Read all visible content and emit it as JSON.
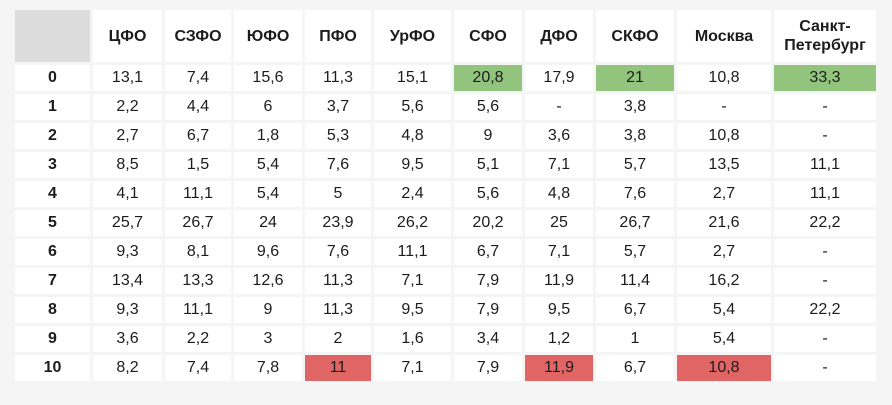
{
  "table": {
    "corner": "",
    "columns": [
      "ЦФО",
      "СЗФО",
      "ЮФО",
      "ПФО",
      "УрФО",
      "СФО",
      "ДФО",
      "СКФО",
      "Москва",
      "Санкт-Петербург"
    ],
    "rows": [
      {
        "label": "0",
        "cells": [
          "13,1",
          "7,4",
          "15,6",
          "11,3",
          "15,1",
          "20,8",
          "17,9",
          "21",
          "10,8",
          "33,3"
        ]
      },
      {
        "label": "1",
        "cells": [
          "2,2",
          "4,4",
          "6",
          "3,7",
          "5,6",
          "5,6",
          "-",
          "3,8",
          "-",
          "-"
        ]
      },
      {
        "label": "2",
        "cells": [
          "2,7",
          "6,7",
          "1,8",
          "5,3",
          "4,8",
          "9",
          "3,6",
          "3,8",
          "10,8",
          "-"
        ]
      },
      {
        "label": "3",
        "cells": [
          "8,5",
          "1,5",
          "5,4",
          "7,6",
          "9,5",
          "5,1",
          "7,1",
          "5,7",
          "13,5",
          "11,1"
        ]
      },
      {
        "label": "4",
        "cells": [
          "4,1",
          "11,1",
          "5,4",
          "5",
          "2,4",
          "5,6",
          "4,8",
          "7,6",
          "2,7",
          "11,1"
        ]
      },
      {
        "label": "5",
        "cells": [
          "25,7",
          "26,7",
          "24",
          "23,9",
          "26,2",
          "20,2",
          "25",
          "26,7",
          "21,6",
          "22,2"
        ]
      },
      {
        "label": "6",
        "cells": [
          "9,3",
          "8,1",
          "9,6",
          "7,6",
          "11,1",
          "6,7",
          "7,1",
          "5,7",
          "2,7",
          "-"
        ]
      },
      {
        "label": "7",
        "cells": [
          "13,4",
          "13,3",
          "12,6",
          "11,3",
          "7,1",
          "7,9",
          "11,9",
          "11,4",
          "16,2",
          "-"
        ]
      },
      {
        "label": "8",
        "cells": [
          "9,3",
          "11,1",
          "9",
          "11,3",
          "9,5",
          "7,9",
          "9,5",
          "6,7",
          "5,4",
          "22,2"
        ]
      },
      {
        "label": "9",
        "cells": [
          "3,6",
          "2,2",
          "3",
          "2",
          "1,6",
          "3,4",
          "1,2",
          "1",
          "5,4",
          "-"
        ]
      },
      {
        "label": "10",
        "cells": [
          "8,2",
          "7,4",
          "7,8",
          "11",
          "7,1",
          "7,9",
          "11,9",
          "6,7",
          "10,8",
          "-"
        ]
      }
    ],
    "highlights": {
      "high_color": "#93c47d",
      "low_color": "#e06666",
      "cells": [
        {
          "row": 0,
          "col": 5,
          "kind": "high"
        },
        {
          "row": 0,
          "col": 7,
          "kind": "high"
        },
        {
          "row": 0,
          "col": 9,
          "kind": "high"
        },
        {
          "row": 10,
          "col": 3,
          "kind": "low"
        },
        {
          "row": 10,
          "col": 6,
          "kind": "low"
        },
        {
          "row": 10,
          "col": 8,
          "kind": "low"
        }
      ]
    },
    "colors": {
      "page_background": "#f5f5f5",
      "corner_background": "#dcdcdc",
      "cell_background": "#ffffff",
      "text": "#1c1c1c"
    }
  }
}
